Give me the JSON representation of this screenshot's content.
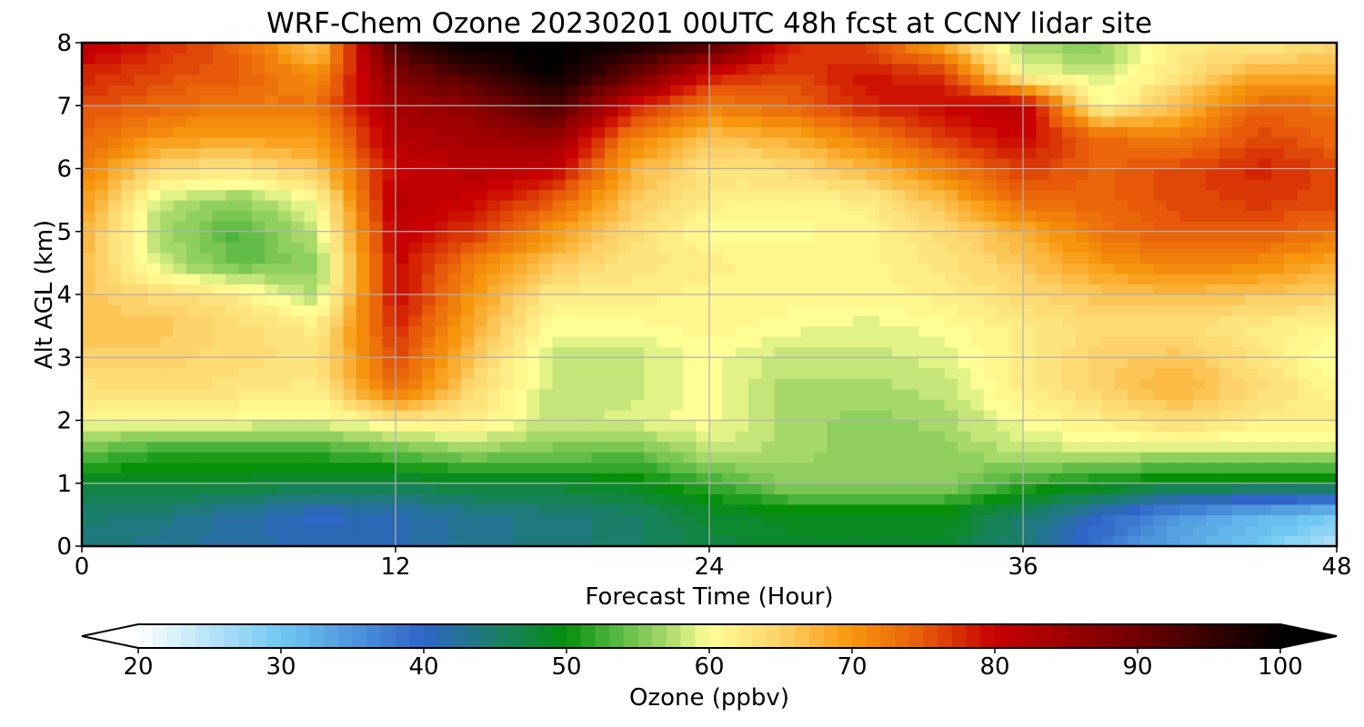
{
  "chart_data": {
    "type": "heatmap",
    "subtype": "filled-contour time-height cross section",
    "title": "WRF-Chem Ozone  20230201 00UTC 48h fcst at CCNY lidar site",
    "xlabel": "Forecast Time (Hour)",
    "ylabel": "Alt AGL (km)",
    "xlim": [
      0,
      48
    ],
    "ylim": [
      0,
      8
    ],
    "xticks": [
      0,
      12,
      24,
      36,
      48
    ],
    "yticks": [
      0,
      1,
      2,
      3,
      4,
      5,
      6,
      7,
      8
    ],
    "grid": true,
    "colorbar": {
      "label": "Ozone  (ppbv)",
      "orientation": "horizontal",
      "placement": "bottom",
      "extend": "both",
      "min": 20,
      "max": 100,
      "ticks": [
        20,
        30,
        40,
        50,
        60,
        70,
        80,
        90,
        100
      ],
      "color_stops": [
        {
          "value": 20,
          "color": "#ffffff"
        },
        {
          "value": 30,
          "color": "#6fc8f2"
        },
        {
          "value": 40,
          "color": "#2f64c8"
        },
        {
          "value": 45,
          "color": "#1b7e6a"
        },
        {
          "value": 50,
          "color": "#04900a"
        },
        {
          "value": 53,
          "color": "#4bb33c"
        },
        {
          "value": 57,
          "color": "#a6d86a"
        },
        {
          "value": 60,
          "color": "#ffff96"
        },
        {
          "value": 65,
          "color": "#fdd26a"
        },
        {
          "value": 70,
          "color": "#f7960c"
        },
        {
          "value": 75,
          "color": "#e65a0a"
        },
        {
          "value": 80,
          "color": "#c80000"
        },
        {
          "value": 90,
          "color": "#6e0000"
        },
        {
          "value": 100,
          "color": "#000000"
        }
      ]
    },
    "grid_data": {
      "x_hours": [
        0,
        3,
        6,
        9,
        12,
        15,
        18,
        21,
        24,
        27,
        30,
        33,
        36,
        39,
        42,
        45,
        48
      ],
      "y_km": [
        0,
        0.5,
        1,
        1.5,
        2,
        2.5,
        3,
        3.5,
        4,
        4.5,
        5,
        5.5,
        6,
        6.5,
        7,
        7.5,
        8
      ],
      "ozone_ppbv": [
        [
          44,
          43,
          42,
          41,
          41,
          43,
          44,
          45,
          47,
          48,
          48,
          48,
          44,
          38,
          33,
          30,
          25
        ],
        [
          45,
          44,
          42,
          40,
          41,
          43,
          44,
          45,
          48,
          49,
          49,
          49,
          45,
          40,
          35,
          32,
          30
        ],
        [
          48,
          48,
          48,
          47,
          47,
          48,
          48,
          49,
          52,
          56,
          56,
          56,
          52,
          50,
          48,
          48,
          48
        ],
        [
          54,
          52,
          52,
          52,
          54,
          56,
          55,
          54,
          58,
          57,
          56,
          56,
          58,
          58,
          58,
          58,
          58
        ],
        [
          60,
          60,
          60,
          59,
          62,
          62,
          58,
          59,
          60,
          57,
          56,
          57,
          60,
          62,
          64,
          62,
          62
        ],
        [
          63,
          64,
          63,
          62,
          74,
          64,
          58,
          58,
          60,
          57,
          57,
          58,
          62,
          65,
          68,
          64,
          61
        ],
        [
          65,
          65,
          64,
          63,
          76,
          66,
          58,
          58,
          60,
          58,
          58,
          59,
          62,
          65,
          66,
          63,
          59
        ],
        [
          66,
          66,
          64,
          62,
          78,
          68,
          60,
          60,
          61,
          60,
          59,
          60,
          62,
          64,
          64,
          62,
          61
        ],
        [
          66,
          64,
          62,
          57,
          80,
          70,
          62,
          62,
          61,
          61,
          61,
          62,
          64,
          66,
          67,
          66,
          65
        ],
        [
          67,
          58,
          54,
          56,
          80,
          72,
          66,
          63,
          62,
          61,
          61,
          63,
          66,
          70,
          72,
          71,
          68
        ],
        [
          68,
          57,
          53,
          58,
          81,
          77,
          70,
          64,
          60,
          60,
          61,
          64,
          68,
          73,
          75,
          75,
          73
        ],
        [
          70,
          58,
          56,
          60,
          82,
          80,
          75,
          66,
          62,
          61,
          62,
          67,
          74,
          74,
          76,
          77,
          76
        ],
        [
          72,
          64,
          63,
          66,
          80,
          82,
          81,
          68,
          63,
          64,
          67,
          72,
          77,
          74,
          76,
          78,
          76
        ],
        [
          74,
          70,
          69,
          70,
          82,
          84,
          86,
          72,
          66,
          68,
          72,
          77,
          80,
          74,
          72,
          76,
          74
        ],
        [
          76,
          74,
          72,
          73,
          84,
          87,
          94,
          79,
          72,
          74,
          78,
          80,
          82,
          60,
          67,
          74,
          73
        ],
        [
          78,
          76,
          75,
          70,
          88,
          94,
          100,
          91,
          79,
          76,
          79,
          77,
          60,
          58,
          63,
          68,
          68
        ],
        [
          82,
          78,
          74,
          65,
          94,
          100,
          100,
          99,
          94,
          78,
          76,
          68,
          56,
          56,
          62,
          62,
          64
        ]
      ]
    }
  }
}
